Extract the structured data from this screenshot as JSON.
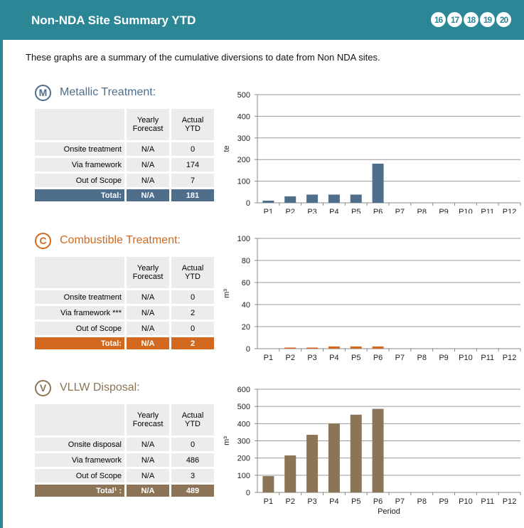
{
  "header": {
    "title": "Non-NDA Site Summary YTD",
    "badges": [
      "16",
      "17",
      "18",
      "19",
      "20"
    ]
  },
  "intro": "These graphs are a summary of the cumulative diversions to date from Non NDA sites.",
  "sections": [
    {
      "icon": "M",
      "title": "Metallic Treatment:",
      "color": "#4f6e8c",
      "table": {
        "columns": [
          "Yearly Forecast",
          "Actual YTD"
        ],
        "rows": [
          [
            "Onsite treatment",
            "N/A",
            "0"
          ],
          [
            "Via framework",
            "N/A",
            "174"
          ],
          [
            "Out of Scope",
            "N/A",
            "7"
          ]
        ],
        "total": [
          "Total:",
          "N/A",
          "181"
        ]
      }
    },
    {
      "icon": "C",
      "title": "Combustible Treatment:",
      "color": "#d2691f",
      "table": {
        "columns": [
          "Yearly Forecast",
          "Actual YTD"
        ],
        "rows": [
          [
            "Onsite treatment",
            "N/A",
            "0"
          ],
          [
            "Via framework ***",
            "N/A",
            "2"
          ],
          [
            "Out of Scope",
            "N/A",
            "0"
          ]
        ],
        "total": [
          "Total:",
          "N/A",
          "2"
        ]
      }
    },
    {
      "icon": "V",
      "title": "VLLW Disposal:",
      "color": "#8c7556",
      "table": {
        "columns": [
          "Yearly Forecast",
          "Actual YTD"
        ],
        "rows": [
          [
            "Onsite disposal",
            "N/A",
            "0"
          ],
          [
            "Via framework",
            "N/A",
            "486"
          ],
          [
            "Out of Scope",
            "N/A",
            "3"
          ]
        ],
        "total": [
          "Total¹ :",
          "N/A",
          "489"
        ]
      }
    }
  ],
  "chart_data": [
    {
      "type": "bar",
      "ylabel": "te",
      "categories": [
        "P1",
        "P2",
        "P3",
        "P4",
        "P5",
        "P6",
        "P7",
        "P8",
        "P9",
        "P10",
        "P11",
        "P12"
      ],
      "values": [
        10,
        30,
        38,
        38,
        38,
        181,
        null,
        null,
        null,
        null,
        null,
        null
      ],
      "color": "#4f6e8c",
      "ylim": [
        0,
        500
      ],
      "yticks": [
        0,
        100,
        200,
        300,
        400,
        500
      ],
      "grid": true
    },
    {
      "type": "bar",
      "ylabel": "m³",
      "categories": [
        "P1",
        "P2",
        "P3",
        "P4",
        "P5",
        "P6",
        "P7",
        "P8",
        "P9",
        "P10",
        "P11",
        "P12"
      ],
      "values": [
        0,
        1,
        1,
        2,
        2,
        2,
        null,
        null,
        null,
        null,
        null,
        null
      ],
      "color": "#d2691f",
      "ylim": [
        0,
        100
      ],
      "yticks": [
        0,
        20,
        40,
        60,
        80,
        100
      ],
      "grid": true
    },
    {
      "type": "bar",
      "ylabel": "m³",
      "xlabel": "Period",
      "categories": [
        "P1",
        "P2",
        "P3",
        "P4",
        "P5",
        "P6",
        "P7",
        "P8",
        "P9",
        "P10",
        "P11",
        "P12"
      ],
      "values": [
        95,
        215,
        335,
        400,
        452,
        486,
        null,
        null,
        null,
        null,
        null,
        null
      ],
      "color": "#8c7556",
      "ylim": [
        0,
        600
      ],
      "yticks": [
        0,
        100,
        200,
        300,
        400,
        500,
        600
      ],
      "grid": true
    }
  ]
}
